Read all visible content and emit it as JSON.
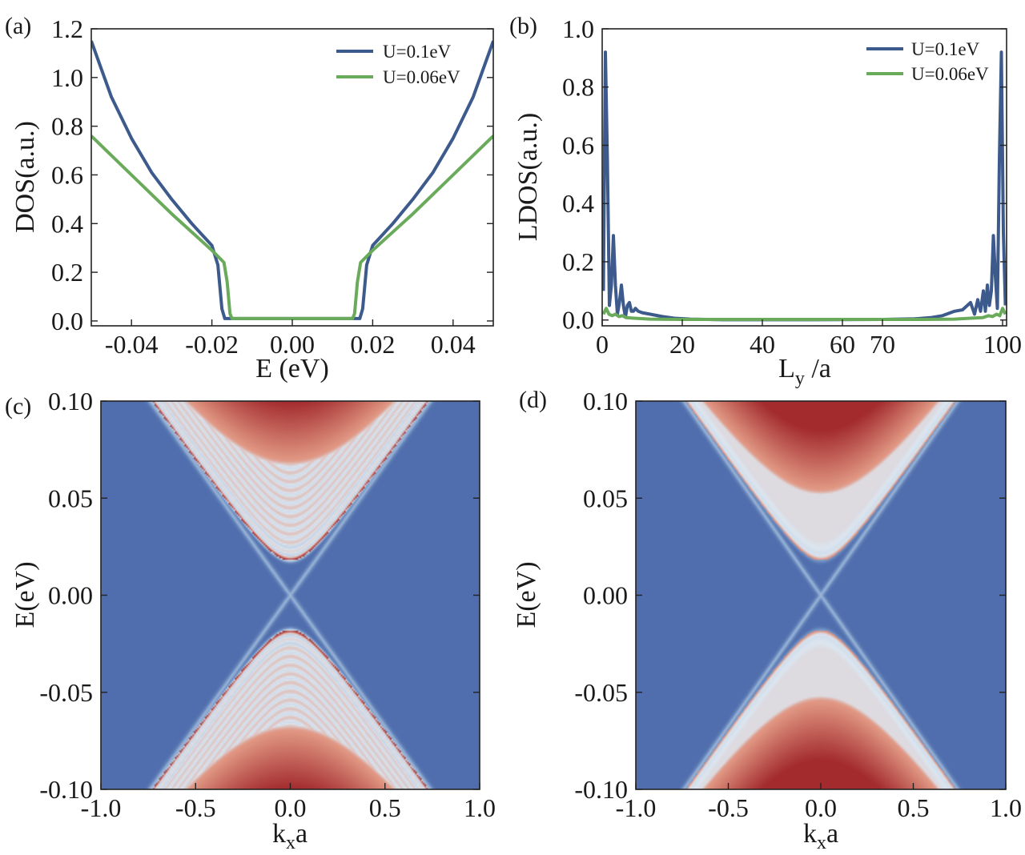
{
  "figure": {
    "panels": [
      {
        "id": "a",
        "label": "(a)"
      },
      {
        "id": "b",
        "label": "(b)"
      },
      {
        "id": "c",
        "label": "(c)"
      },
      {
        "id": "d",
        "label": "(d)"
      }
    ]
  },
  "colors": {
    "series_blue": "#3d5a8c",
    "series_green": "#6aaa5b",
    "map_low": "#4a66a8",
    "map_mid": "#dce6f0",
    "map_high": "#a32b2e"
  },
  "chart_data": [
    {
      "panel": "a",
      "type": "line",
      "title": "",
      "xlabel": "E (eV)",
      "ylabel": "DOS(a.u.)",
      "xlim": [
        -0.05,
        0.05
      ],
      "ylim": [
        -0.02,
        1.2
      ],
      "xticks": [
        -0.04,
        -0.02,
        0.0,
        0.02,
        0.04
      ],
      "xtick_labels": [
        "-0.04",
        "-0.02",
        "0.00",
        "0.02",
        "0.04"
      ],
      "yticks": [
        0.0,
        0.2,
        0.4,
        0.6,
        0.8,
        1.0,
        1.2
      ],
      "ytick_labels": [
        "0.0",
        "0.2",
        "0.4",
        "0.6",
        "0.8",
        "1.0",
        "1.2"
      ],
      "legend_position": "top-right",
      "series": [
        {
          "name": "U=0.1eV",
          "color": "#3d5a8c",
          "x": [
            -0.05,
            -0.045,
            -0.04,
            -0.035,
            -0.03,
            -0.025,
            -0.02,
            -0.0185,
            -0.0175,
            -0.0168,
            -0.016,
            -0.01,
            0.0,
            0.01,
            0.016,
            0.0168,
            0.0175,
            0.0185,
            0.02,
            0.025,
            0.03,
            0.035,
            0.04,
            0.045,
            0.05
          ],
          "y": [
            1.15,
            0.92,
            0.75,
            0.61,
            0.5,
            0.4,
            0.31,
            0.23,
            0.05,
            0.01,
            0.01,
            0.01,
            0.01,
            0.01,
            0.01,
            0.01,
            0.05,
            0.23,
            0.31,
            0.4,
            0.5,
            0.61,
            0.75,
            0.92,
            1.15
          ]
        },
        {
          "name": "U=0.06eV",
          "color": "#6aaa5b",
          "x": [
            -0.05,
            -0.04,
            -0.03,
            -0.02,
            -0.017,
            -0.0162,
            -0.0155,
            -0.015,
            -0.01,
            0.0,
            0.01,
            0.015,
            0.0155,
            0.0162,
            0.017,
            0.02,
            0.03,
            0.04,
            0.05
          ],
          "y": [
            0.76,
            0.6,
            0.44,
            0.29,
            0.24,
            0.16,
            0.03,
            0.01,
            0.01,
            0.01,
            0.01,
            0.01,
            0.03,
            0.16,
            0.24,
            0.29,
            0.44,
            0.6,
            0.76
          ]
        }
      ]
    },
    {
      "panel": "b",
      "type": "line",
      "title": "",
      "xlabel_main": "L",
      "xlabel_sub": "y",
      "xlabel_tail": " /a",
      "ylabel": "LDOS(a.u.)",
      "xlim": [
        0,
        101
      ],
      "ylim": [
        -0.02,
        1.0
      ],
      "xticks": [
        0,
        20,
        40,
        60,
        70,
        100
      ],
      "xtick_labels": [
        "0",
        "20",
        "40",
        "60",
        "70",
        "100"
      ],
      "yticks": [
        0.0,
        0.2,
        0.4,
        0.6,
        0.8,
        1.0
      ],
      "ytick_labels": [
        "0.0",
        "0.2",
        "0.4",
        "0.6",
        "0.8",
        "1.0"
      ],
      "legend_position": "top-right",
      "series": [
        {
          "name": "U=0.1eV",
          "color": "#3d5a8c",
          "x": [
            0.3,
            0.8,
            1.3,
            1.8,
            2.3,
            2.8,
            3.3,
            3.8,
            4.3,
            4.8,
            5.3,
            5.8,
            6.3,
            6.8,
            7.3,
            7.8,
            8.3,
            9,
            10,
            12,
            15,
            18,
            22,
            30,
            50,
            70,
            78,
            82,
            85,
            88,
            90,
            92,
            93,
            93.8,
            94.5,
            95.2,
            95.7,
            96.2,
            96.7,
            97.2,
            97.7,
            98.2,
            98.7,
            99.2,
            99.7,
            100.2,
            100.7
          ],
          "y": [
            0.1,
            0.92,
            0.55,
            0.05,
            0.12,
            0.29,
            0.12,
            0.02,
            0.06,
            0.12,
            0.05,
            0.01,
            0.05,
            0.06,
            0.03,
            0.03,
            0.04,
            0.03,
            0.025,
            0.02,
            0.012,
            0.006,
            0.003,
            0.001,
            0.001,
            0.002,
            0.004,
            0.008,
            0.015,
            0.03,
            0.035,
            0.06,
            0.02,
            0.07,
            0.03,
            0.1,
            0.03,
            0.12,
            0.05,
            0.1,
            0.29,
            0.15,
            0.04,
            0.55,
            0.92,
            0.3,
            0.05
          ]
        },
        {
          "name": "U=0.06eV",
          "color": "#6aaa5b",
          "x": [
            0.3,
            1.0,
            1.7,
            2.5,
            3.3,
            4.2,
            5.0,
            6.0,
            8.0,
            12,
            20,
            50,
            80,
            88,
            92,
            95,
            96.5,
            97.5,
            98.5,
            99.3,
            100.0,
            100.7
          ],
          "y": [
            0.02,
            0.04,
            0.02,
            0.015,
            0.02,
            0.012,
            0.015,
            0.008,
            0.006,
            0.003,
            0.002,
            0.002,
            0.002,
            0.003,
            0.006,
            0.008,
            0.015,
            0.012,
            0.02,
            0.015,
            0.04,
            0.02
          ]
        }
      ]
    },
    {
      "panel": "c",
      "type": "heatmap",
      "title": "",
      "xlabel_main": "k",
      "xlabel_sub": "x",
      "xlabel_tail": "a",
      "ylabel": "E(eV)",
      "xlim": [
        -1.0,
        1.0
      ],
      "ylim": [
        -0.1,
        0.1
      ],
      "xticks": [
        -1.0,
        -0.5,
        0.0,
        0.5,
        1.0
      ],
      "xtick_labels": [
        "-1.0",
        "-0.5",
        "0.0",
        "0.5",
        "1.0"
      ],
      "yticks": [
        0.1,
        0.05,
        0.0,
        -0.05,
        -0.1
      ],
      "ytick_labels": [
        "0.10",
        "0.05",
        "0.00",
        "-0.05",
        "-0.10"
      ],
      "features": {
        "gap_edge_E": 0.018,
        "upper_band_min_E": 0.07,
        "edge_state_slope_eV_per_k": 0.135,
        "subband_spacing_eV": 0.0045,
        "subbands": true
      }
    },
    {
      "panel": "d",
      "type": "heatmap",
      "title": "",
      "xlabel_main": "k",
      "xlabel_sub": "x",
      "xlabel_tail": "a",
      "ylabel": "E(eV)",
      "xlim": [
        -1.0,
        1.0
      ],
      "ylim": [
        -0.1,
        0.1
      ],
      "xticks": [
        -1.0,
        -0.5,
        0.0,
        0.5,
        1.0
      ],
      "xtick_labels": [
        "-1.0",
        "-0.5",
        "0.0",
        "0.5",
        "1.0"
      ],
      "yticks": [
        0.1,
        0.05,
        0.0,
        -0.05,
        -0.1
      ],
      "ytick_labels": [
        "0.10",
        "0.05",
        "0.00",
        "-0.05",
        "-0.10"
      ],
      "features": {
        "gap_edge_E": 0.018,
        "upper_band_min_E": 0.055,
        "edge_state_slope_eV_per_k": 0.135,
        "subband_spacing_eV": 0,
        "subbands": false
      }
    }
  ]
}
